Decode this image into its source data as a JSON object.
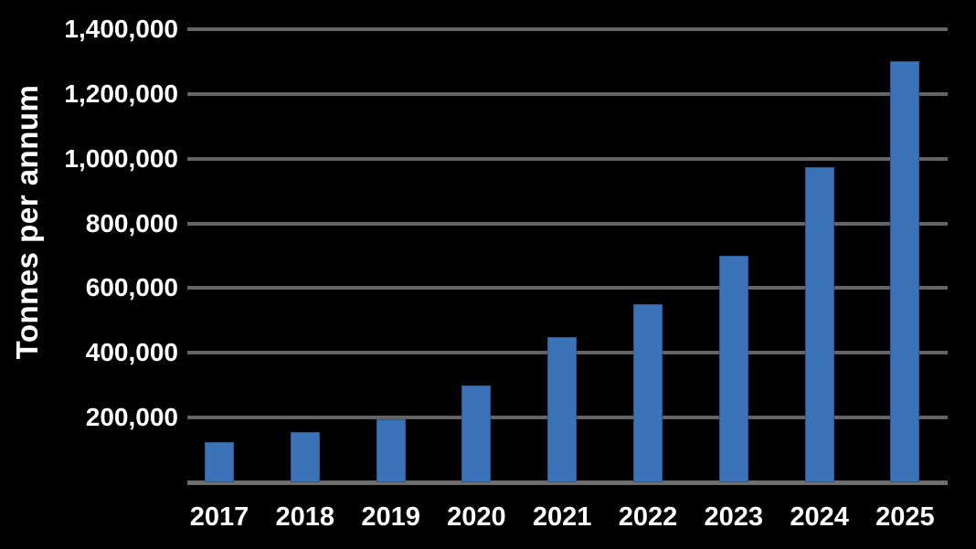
{
  "chart_data": {
    "type": "bar",
    "title": "",
    "xlabel": "",
    "ylabel": "Tonnes per annum",
    "categories": [
      "2017",
      "2018",
      "2019",
      "2020",
      "2021",
      "2022",
      "2023",
      "2024",
      "2025"
    ],
    "values": [
      125000,
      155000,
      195000,
      300000,
      450000,
      550000,
      700000,
      975000,
      1300000
    ],
    "y_ticks": [
      {
        "value": 200000,
        "label": "200,000"
      },
      {
        "value": 400000,
        "label": "400,000"
      },
      {
        "value": 600000,
        "label": "600,000"
      },
      {
        "value": 800000,
        "label": "800,000"
      },
      {
        "value": 1000000,
        "label": "1,000,000"
      },
      {
        "value": 1200000,
        "label": "1,200,000"
      },
      {
        "value": 1400000,
        "label": "1,400,000"
      }
    ],
    "ylim": [
      0,
      1400000
    ],
    "grid": "horizontal",
    "legend_position": "none",
    "colors": {
      "background": "#000000",
      "bar_fill": "#3B73B8",
      "bar_border": "#2A5A96",
      "gridline": "#646464",
      "baseline": "#6E6E6E",
      "text": "#FFFFFF"
    }
  }
}
